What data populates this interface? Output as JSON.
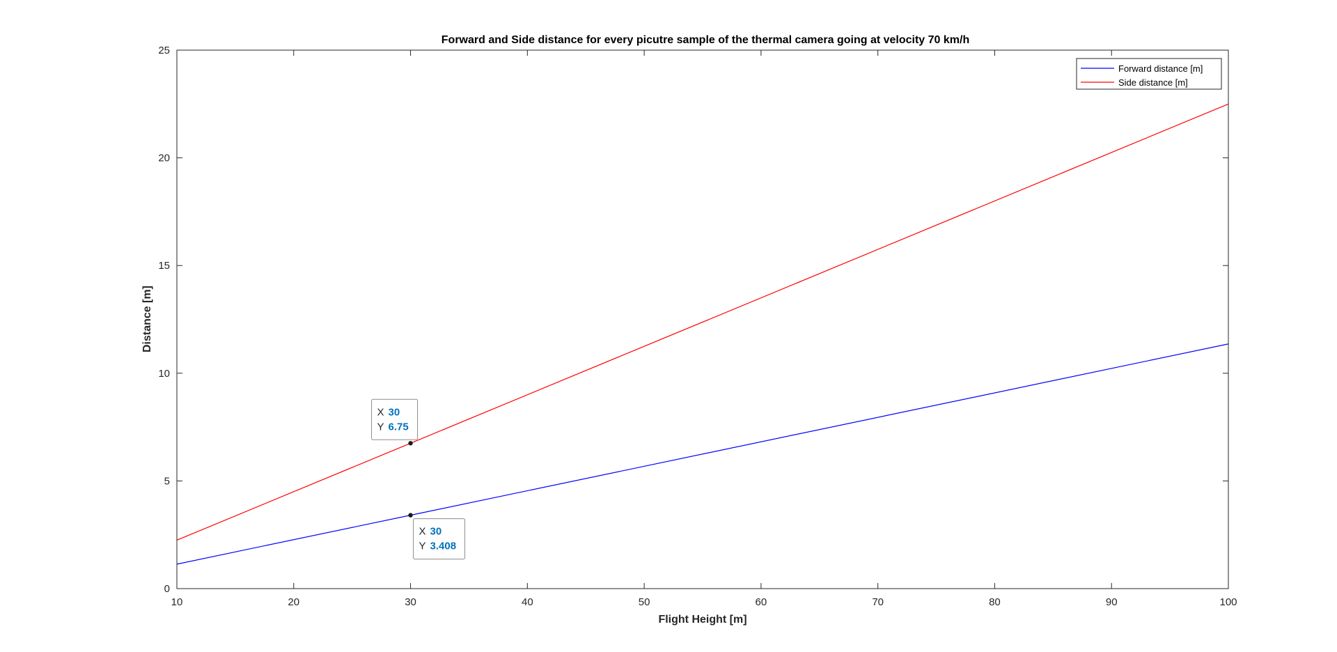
{
  "chart_data": {
    "type": "line",
    "title": "Forward and Side distance for every picutre sample of the thermal camera going at velocity 70 km/h",
    "xlabel": "Flight Height [m]",
    "ylabel": "Distance [m]",
    "xlim": [
      10,
      100
    ],
    "ylim": [
      0,
      25
    ],
    "xticks": [
      10,
      20,
      30,
      40,
      50,
      60,
      70,
      80,
      90,
      100
    ],
    "yticks": [
      0,
      5,
      10,
      15,
      20,
      25
    ],
    "grid": false,
    "legend_position": "top-right",
    "series": [
      {
        "name": "Forward distance [m]",
        "color": "#0000ff",
        "x": [
          10,
          30,
          100
        ],
        "y": [
          1.136,
          3.408,
          11.36
        ]
      },
      {
        "name": "Side distance [m]",
        "color": "#ff0000",
        "x": [
          10,
          30,
          100
        ],
        "y": [
          2.25,
          6.75,
          22.5
        ]
      }
    ],
    "datatips": [
      {
        "series": 1,
        "x": 30,
        "y": 6.75,
        "x_key": "X",
        "y_key": "Y",
        "x_text": "30",
        "y_text": "6.75",
        "placement": "above-left"
      },
      {
        "series": 0,
        "x": 30,
        "y": 3.408,
        "x_key": "X",
        "y_key": "Y",
        "x_text": "30",
        "y_text": "3.408",
        "placement": "below-right"
      }
    ],
    "datatip_value_color": "#0072bd"
  }
}
